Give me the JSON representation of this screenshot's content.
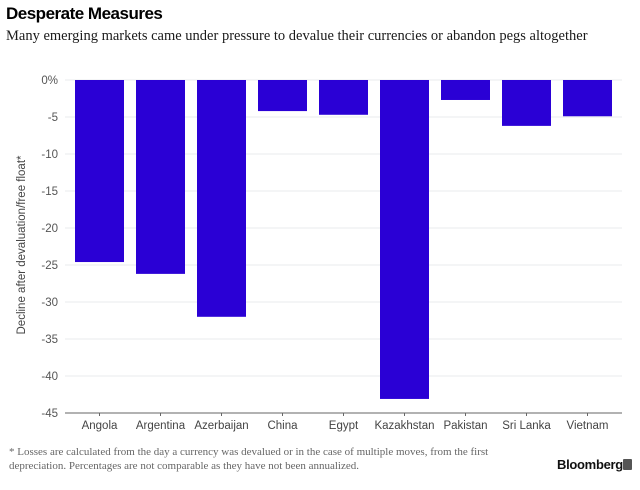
{
  "chart_data": {
    "type": "bar",
    "title": "Desperate Measures",
    "subtitle": "Many emerging markets came under pressure to devalue their currencies or abandon pegs altogether",
    "xlabel": "",
    "ylabel": "Decline after devaluation/free float*",
    "categories": [
      "Angola",
      "Argentina",
      "Azerbaijan",
      "China",
      "Egypt",
      "Kazakhstan",
      "Pakistan",
      "Sri Lanka",
      "Vietnam"
    ],
    "values": [
      -24.6,
      -26.2,
      -32.0,
      -4.2,
      -4.7,
      -43.1,
      -2.7,
      -6.2,
      -4.9
    ],
    "ylim": [
      -45,
      0
    ],
    "yticks": [
      0,
      -5,
      -10,
      -15,
      -20,
      -25,
      -30,
      -35,
      -40,
      -45
    ],
    "ytick_labels": [
      "0%",
      "-5",
      "-10",
      "-15",
      "-20",
      "-25",
      "-30",
      "-35",
      "-40",
      "-45"
    ],
    "grid": true,
    "bar_color": "#2a00d5",
    "footnote": "* Losses are calculated from the day a currency was devalued or in the case of multiple moves, from the first depreciation. Percentages are not comparable as they have not been annualized.",
    "source": "Bloomberg"
  }
}
